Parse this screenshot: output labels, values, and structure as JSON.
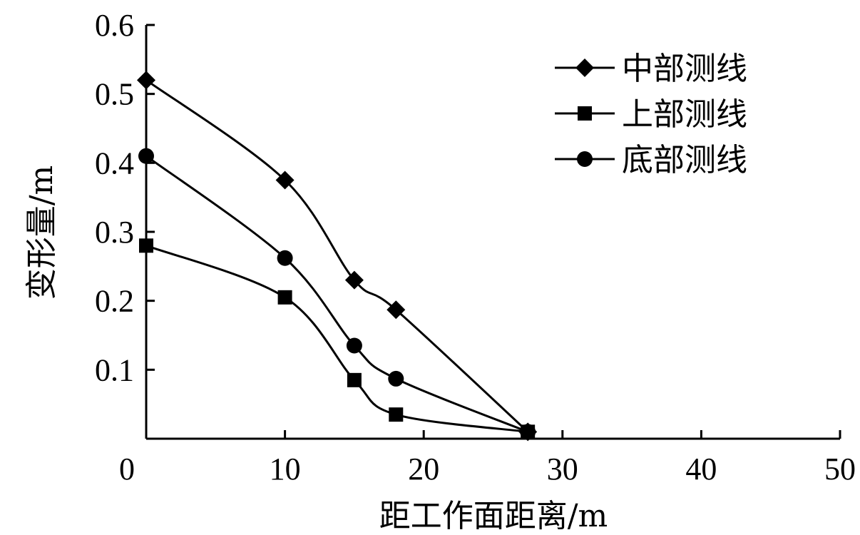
{
  "chart_data": {
    "type": "line",
    "title": "",
    "xlabel": "距工作面距离/m",
    "ylabel": "变形量/m",
    "xlim": [
      0,
      50
    ],
    "ylim": [
      0,
      0.6
    ],
    "xticks": [
      0,
      10,
      20,
      30,
      40,
      50
    ],
    "yticks": [
      0.1,
      0.2,
      0.3,
      0.4,
      0.5,
      0.6
    ],
    "xtick_labels": [
      "0",
      "10",
      "20",
      "30",
      "40",
      "50"
    ],
    "ytick_labels": [
      "0.1",
      "0.2",
      "0.3",
      "0.4",
      "0.5",
      "0.6"
    ],
    "grid": false,
    "legend_position": "top-right",
    "series": [
      {
        "name": "中部测线",
        "marker": "diamond",
        "x": [
          0,
          10,
          15,
          18,
          27.5
        ],
        "y": [
          0.52,
          0.375,
          0.23,
          0.187,
          0.01
        ]
      },
      {
        "name": "上部测线",
        "marker": "square",
        "x": [
          0,
          10,
          15,
          18,
          27.5
        ],
        "y": [
          0.28,
          0.205,
          0.085,
          0.035,
          0.01
        ]
      },
      {
        "name": "底部测线",
        "marker": "circle",
        "x": [
          0,
          10,
          15,
          18,
          27.5
        ],
        "y": [
          0.41,
          0.262,
          0.135,
          0.087,
          0.01
        ]
      }
    ]
  }
}
